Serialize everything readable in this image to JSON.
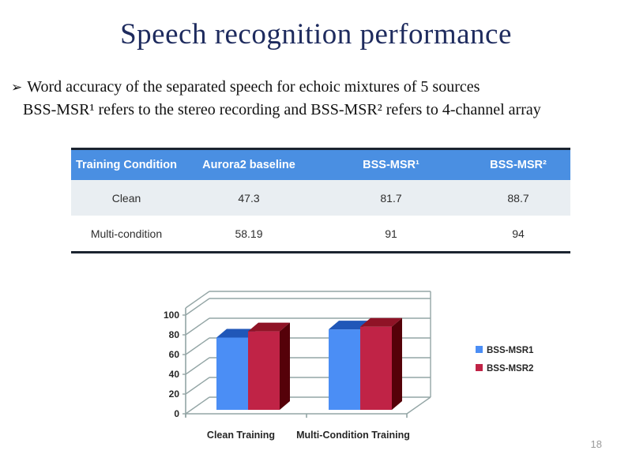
{
  "slide": {
    "title": "Speech recognition performance",
    "page_number": "18",
    "bullet": {
      "marker": "➢",
      "line1": "Word accuracy of the separated speech for echoic mixtures of 5 sources",
      "line2": "BSS-MSR¹ refers to the stereo recording and BSS-MSR² refers to 4-channel array"
    }
  },
  "table": {
    "header_bg": "#4a8fe2",
    "row_alt_bg": "#e9eef2",
    "row_bg": "#ffffff",
    "headers": [
      "Training Condition",
      "Aurora2 baseline",
      "BSS-MSR¹",
      "BSS-MSR²"
    ],
    "rows": [
      {
        "cells": [
          "Clean",
          "47.3",
          "81.7",
          "88.7"
        ]
      },
      {
        "cells": [
          "Multi-condition",
          "58.19",
          "91",
          "94"
        ]
      }
    ]
  },
  "chart_data": {
    "type": "bar",
    "style": "3d-clustered-column",
    "title": "",
    "xlabel": "",
    "ylabel": "",
    "categories": [
      "Clean Training",
      "Multi-Condition Training"
    ],
    "series": [
      {
        "name": "BSS-MSR1",
        "values": [
          81.7,
          91
        ],
        "color": "#4b8ef5",
        "color_top": "#2057b8",
        "color_side": "#16407e"
      },
      {
        "name": "BSS-MSR2",
        "values": [
          88.7,
          94
        ],
        "color": "#c02346",
        "color_top": "#8f1326",
        "color_side": "#550109"
      }
    ],
    "ylim": [
      0,
      100
    ],
    "yticks": [
      0,
      20,
      40,
      60,
      80,
      100
    ],
    "grid": true,
    "legend_position": "right",
    "axis_color": "#93a5a5",
    "label_color": "#262626"
  }
}
